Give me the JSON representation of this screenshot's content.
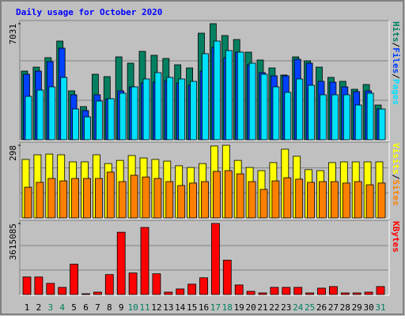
{
  "title": "Daily usage for October 2020",
  "legend_separator": "/",
  "chart_data": [
    {
      "type": "bar",
      "ylim": [
        0,
        7031
      ],
      "yticks": [
        7031
      ],
      "series": [
        {
          "name": "Hits",
          "color": "#008060",
          "values": [
            4161,
            4400,
            4974,
            5979,
            2965,
            2009,
            3970,
            3826,
            5022,
            4640,
            5357,
            5118,
            4926,
            4544,
            4352,
            6457,
            7031,
            6314,
            6074,
            5309,
            4831,
            4352,
            3922,
            5022,
            4783,
            4400,
            3779,
            3539,
            3061,
            3348,
            2105
          ]
        },
        {
          "name": "Files",
          "color": "#0040ff",
          "values": [
            3970,
            4161,
            4735,
            5548,
            2726,
            1770,
            2726,
            2487,
            2965,
            3205,
            3444,
            3492,
            3587,
            3444,
            3300,
            4161,
            5596,
            4974,
            5309,
            4544,
            4066,
            3874,
            3874,
            4879,
            4640,
            3539,
            3492,
            3205,
            2918,
            2965,
            1865
          ]
        },
        {
          "name": "Pages",
          "color": "#00e0ff",
          "values": [
            2631,
            3013,
            3205,
            3779,
            1865,
            1387,
            2344,
            2487,
            2822,
            3205,
            3683,
            4066,
            3779,
            3683,
            3539,
            5214,
            5979,
            5405,
            5309,
            4640,
            3970,
            3205,
            2870,
            3683,
            3300,
            2726,
            2726,
            2726,
            2105,
            2822,
            1865
          ]
        }
      ]
    },
    {
      "type": "bar",
      "ylim": [
        0,
        298
      ],
      "yticks": [
        298
      ],
      "series": [
        {
          "name": "Visits",
          "color": "#ffff00",
          "values": [
            240,
            259,
            262,
            259,
            230,
            230,
            259,
            223,
            236,
            256,
            246,
            240,
            233,
            214,
            207,
            223,
            295,
            298,
            236,
            207,
            194,
            227,
            282,
            253,
            198,
            194,
            227,
            230,
            230,
            230,
            230
          ]
        },
        {
          "name": "Sites",
          "color": "#ff8000",
          "values": [
            126,
            146,
            162,
            152,
            162,
            162,
            162,
            188,
            149,
            175,
            168,
            162,
            149,
            133,
            143,
            149,
            191,
            194,
            181,
            149,
            117,
            152,
            165,
            159,
            146,
            149,
            149,
            143,
            149,
            136,
            143
          ]
        }
      ]
    },
    {
      "type": "bar",
      "ylim": [
        0,
        3615085
      ],
      "yticks": [
        3615085
      ],
      "categories": [
        "1",
        "2",
        "3",
        "4",
        "5",
        "6",
        "7",
        "8",
        "9",
        "10",
        "11",
        "12",
        "13",
        "14",
        "15",
        "16",
        "17",
        "18",
        "19",
        "20",
        "21",
        "22",
        "23",
        "24",
        "25",
        "26",
        "27",
        "28",
        "29",
        "30",
        "31"
      ],
      "category_colors": [
        "#000000",
        "#000000",
        "#00805c",
        "#00805c",
        "#000000",
        "#000000",
        "#000000",
        "#000000",
        "#000000",
        "#00805c",
        "#00805c",
        "#000000",
        "#000000",
        "#000000",
        "#000000",
        "#000000",
        "#00805c",
        "#00805c",
        "#000000",
        "#000000",
        "#000000",
        "#000000",
        "#000000",
        "#00805c",
        "#00805c",
        "#000000",
        "#000000",
        "#000000",
        "#000000",
        "#000000",
        "#00805c"
      ],
      "series": [
        {
          "name": "KBytes",
          "color": "#ff0000",
          "values": [
            893618,
            893618,
            568666,
            365571,
            1543522,
            40619,
            121857,
            1015475,
            3168282,
            1096713,
            3412000,
            1056094,
            121857,
            284333,
            528047,
            853000,
            3615085,
            1746617,
            487428,
            162476,
            81238,
            365571,
            365571,
            365571,
            81238,
            324952,
            406190,
            81238,
            81238,
            121857,
            406190
          ]
        }
      ]
    }
  ]
}
